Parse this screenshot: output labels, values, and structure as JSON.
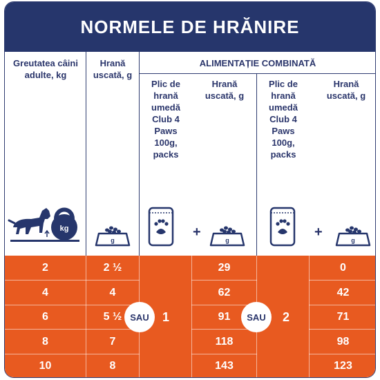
{
  "title": "NORMELE DE HRĂNIRE",
  "headers": {
    "weight": "Greutatea câini adulte, kg",
    "dry_food": "Hrană uscată, g",
    "combined": "ALIMENTAȚIE COMBINATĂ",
    "pouch": "Plic de hrană umedă Club 4 Paws 100g, packs",
    "dry_food_2": "Hrană uscată, g",
    "pouch_2": "Plic de hrană umedă Club 4 Paws 100g, packs",
    "dry_food_3": "Hrană uscată, g"
  },
  "icons": {
    "weight_unit": "kg",
    "bowl_unit": "g",
    "plus": "+"
  },
  "or_label": "SAU",
  "combo1_packs": "1",
  "combo2_packs": "2",
  "columns": {
    "weight": [
      "2",
      "4",
      "6",
      "8",
      "10"
    ],
    "dry_food": [
      "2 ½",
      "4",
      "5 ½",
      "7",
      "8"
    ],
    "combo1_dry": [
      "29",
      "62",
      "91",
      "118",
      "143"
    ],
    "combo2_dry": [
      "0",
      "42",
      "71",
      "98",
      "123"
    ]
  },
  "colors": {
    "navy": "#26366c",
    "orange": "#e85a20",
    "white": "#ffffff"
  }
}
